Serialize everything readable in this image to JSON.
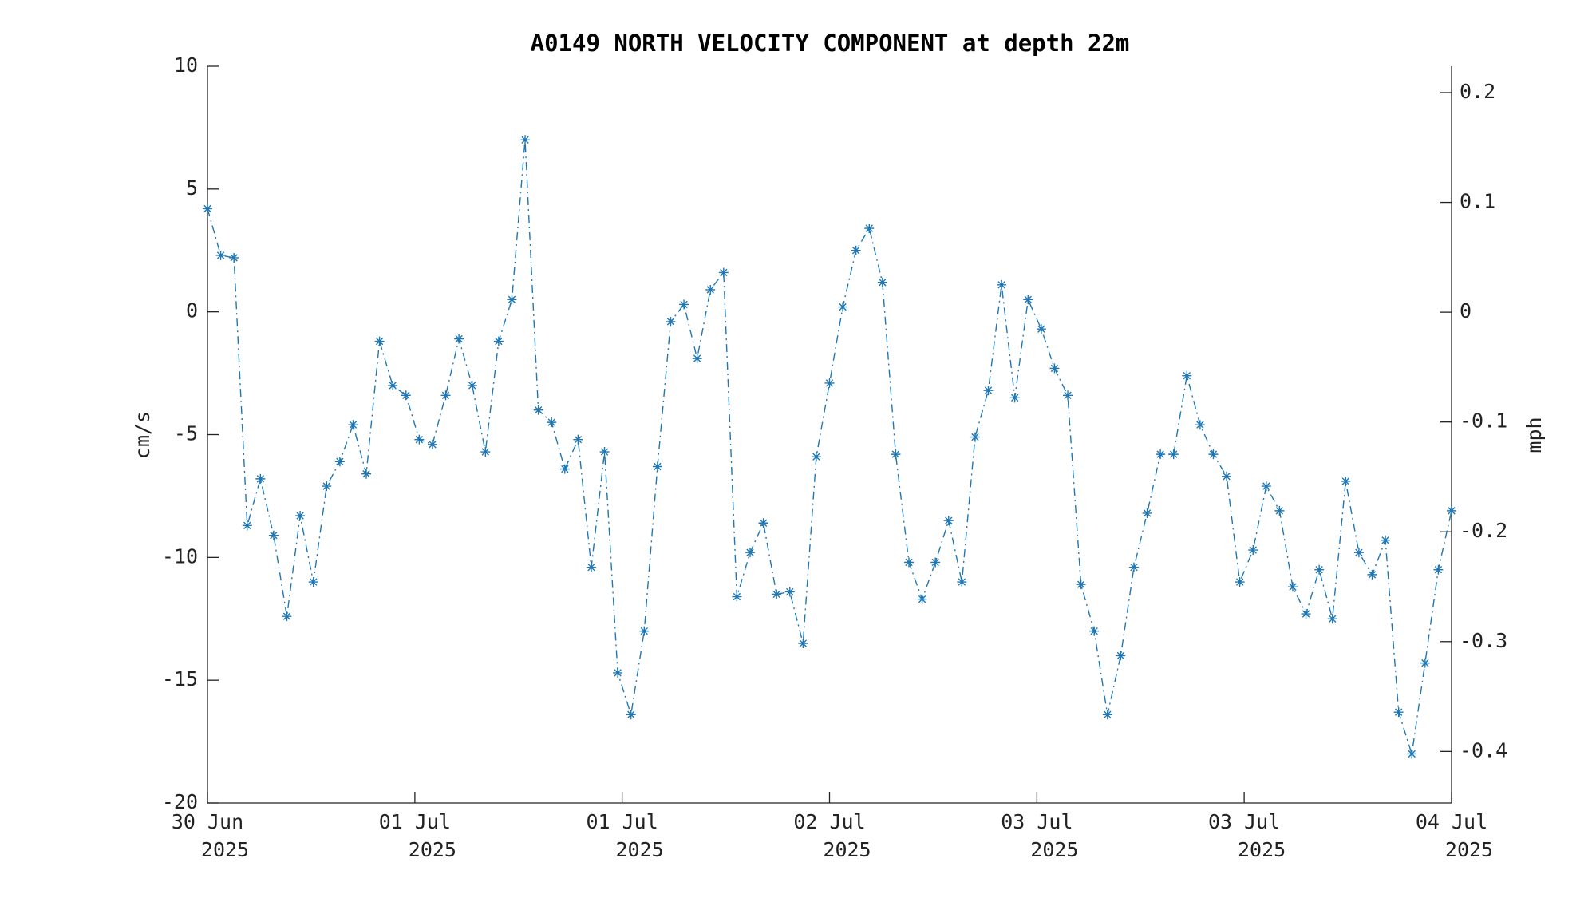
{
  "chart_data": {
    "type": "line",
    "title": "A0149 NORTH VELOCITY COMPONENT at depth 22m",
    "y_label": "cm/s",
    "y2_label": "mph",
    "series": [
      {
        "name": "North velocity",
        "color": "#1f77b4",
        "values": [
          4.2,
          2.3,
          2.2,
          -8.7,
          -6.8,
          -9.1,
          -12.4,
          -8.3,
          -11.0,
          -7.1,
          -6.1,
          -4.6,
          -6.6,
          -1.2,
          -3.0,
          -3.4,
          -5.2,
          -5.4,
          -3.4,
          -1.1,
          -3.0,
          -5.7,
          -1.2,
          0.5,
          7.0,
          -4.0,
          -4.5,
          -6.4,
          -5.2,
          -10.4,
          -5.7,
          -14.7,
          -16.4,
          -13.0,
          -6.3,
          -0.4,
          0.3,
          -1.9,
          0.9,
          1.6,
          -11.6,
          -9.8,
          -8.6,
          -11.5,
          -11.4,
          -13.5,
          -5.9,
          -2.9,
          0.2,
          2.5,
          3.4,
          1.2,
          -5.8,
          -10.2,
          -11.7,
          -10.2,
          -8.5,
          -11.0,
          -5.1,
          -3.2,
          1.1,
          -3.5,
          0.5,
          -0.7,
          -2.3,
          -3.4,
          -11.1,
          -13.0,
          -16.4,
          -14.0,
          -10.4,
          -8.2,
          -5.8,
          -5.8,
          -2.6,
          -4.6,
          -5.8,
          -6.7,
          -11.0,
          -9.7,
          -7.1,
          -8.1,
          -11.2,
          -12.3,
          -10.5,
          -12.5,
          -6.9,
          -9.8,
          -10.7,
          -9.3,
          -16.3,
          -18.0,
          -14.3,
          -10.5,
          -8.1
        ]
      }
    ],
    "xlim": [
      0,
      94
    ],
    "xticks": [
      {
        "value": 0,
        "label": [
          "30 Jun",
          "2025"
        ]
      },
      {
        "value": 15.67,
        "label": [
          "01 Jul",
          "2025"
        ]
      },
      {
        "value": 31.33,
        "label": [
          "01 Jul",
          "2025"
        ]
      },
      {
        "value": 47,
        "label": [
          "02 Jul",
          "2025"
        ]
      },
      {
        "value": 62.67,
        "label": [
          "03 Jul",
          "2025"
        ]
      },
      {
        "value": 78.33,
        "label": [
          "03 Jul",
          "2025"
        ]
      },
      {
        "value": 94,
        "label": [
          "04 Jul",
          "2025"
        ]
      }
    ],
    "ylim": [
      -20,
      10
    ],
    "yticks": [
      -20,
      -15,
      -10,
      -5,
      0,
      5,
      10
    ],
    "y2lim": [
      -0.447,
      0.224
    ],
    "y2ticks": [
      -0.4,
      -0.3,
      -0.2,
      -0.1,
      0,
      0.1,
      0.2
    ],
    "line_style": "dash-dot",
    "marker": "asterisk",
    "grid": false
  }
}
